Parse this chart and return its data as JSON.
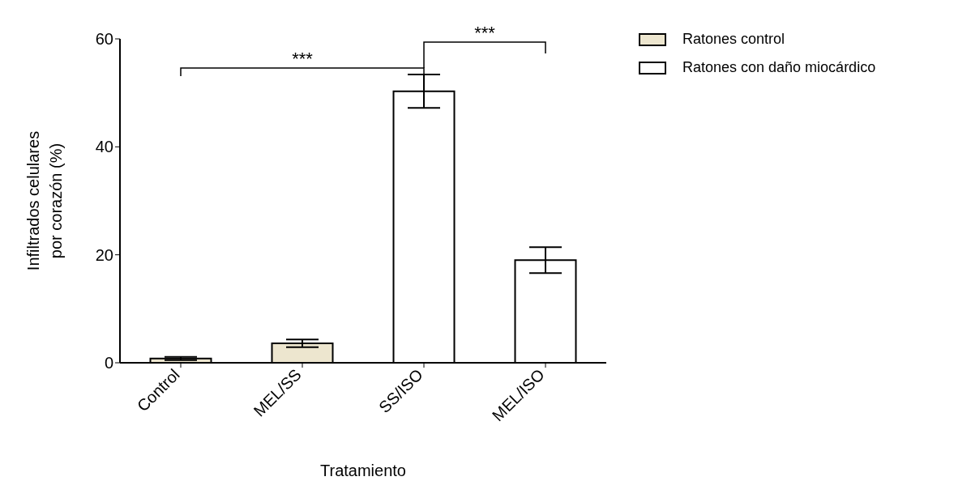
{
  "chart_data": {
    "type": "bar",
    "xlabel": "Tratamiento",
    "ylabel": "Infiltrados celulares\npor corazón (%)",
    "categories": [
      "Control",
      "MEL/SS",
      "SS/ISO",
      "MEL/ISO"
    ],
    "series": [
      {
        "name": "Ratones control",
        "color": "#ede6cf",
        "values": [
          0.8,
          3.6,
          null,
          null
        ],
        "errors": [
          0.3,
          0.7,
          null,
          null
        ]
      },
      {
        "name": "Ratones con daño miocárdico",
        "color": "#ffffff",
        "values": [
          null,
          null,
          50.3,
          19.0
        ],
        "errors": [
          null,
          null,
          3.1,
          2.4
        ]
      }
    ],
    "stacked": true,
    "ylim": [
      0,
      60
    ],
    "yticks": [
      0,
      20,
      40,
      60
    ],
    "grid": false,
    "legend": "top right",
    "annotations": [
      "***",
      "***"
    ]
  }
}
